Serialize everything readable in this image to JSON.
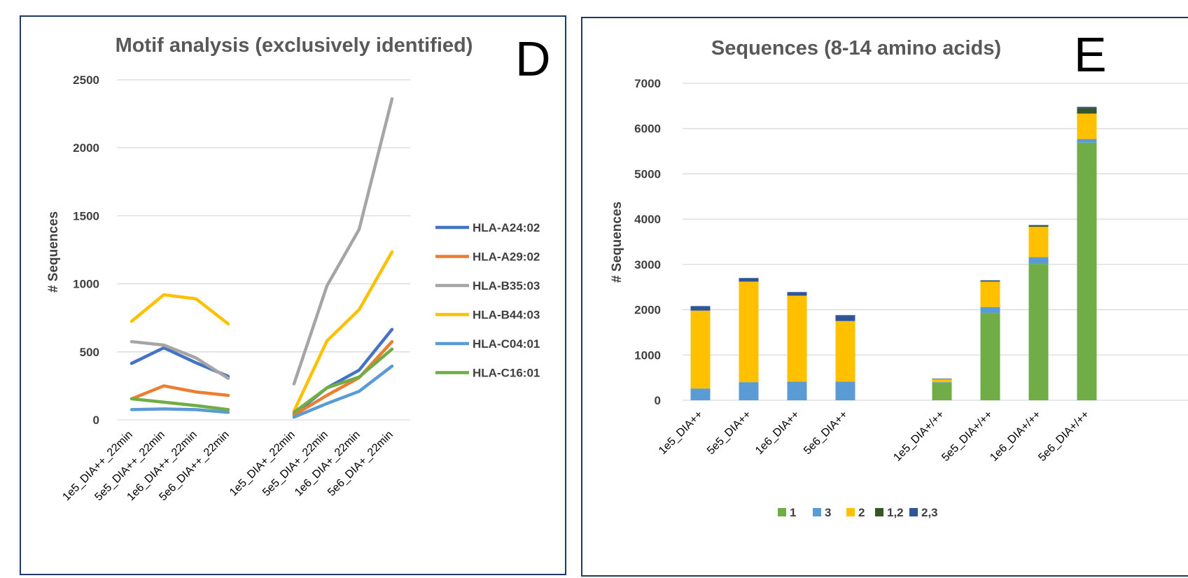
{
  "chart_data": [
    {
      "type": "line",
      "panel_letter": "D",
      "title": "Motif analysis (exclusively identified)",
      "ylabel": "# Sequences",
      "ylim": [
        0,
        2500
      ],
      "yticks": [
        "0",
        "500",
        "1000",
        "1500",
        "2000",
        "2500"
      ],
      "groups": [
        [
          "1e5_DIA++_22min",
          "5e5_DIA++_22min",
          "1e6_DIA++_22min",
          "5e6_DIA++_22min"
        ],
        [
          "1e5_DIA+_22min",
          "5e5_DIA+_22min",
          "1e6_DIA+_22min",
          "5e6_DIA+_22min"
        ]
      ],
      "legend_position": "right",
      "series": [
        {
          "name": "HLA-A24:02",
          "color": "#4472c4",
          "values": [
            [
              415,
              530,
              420,
              320
            ],
            [
              40,
              235,
              365,
              665
            ]
          ]
        },
        {
          "name": "HLA-A29:02",
          "color": "#ed7d31",
          "values": [
            [
              155,
              250,
              205,
              180
            ],
            [
              35,
              180,
              310,
              575
            ]
          ]
        },
        {
          "name": "HLA-B35:03",
          "color": "#a5a5a5",
          "values": [
            [
              575,
              550,
              455,
              305
            ],
            [
              265,
              985,
              1400,
              2360
            ]
          ]
        },
        {
          "name": "HLA-B44:03",
          "color": "#ffc000",
          "values": [
            [
              725,
              920,
              890,
              705
            ],
            [
              65,
              580,
              810,
              1235
            ]
          ]
        },
        {
          "name": "HLA-C04:01",
          "color": "#5b9bd5",
          "values": [
            [
              75,
              80,
              75,
              55
            ],
            [
              20,
              120,
              210,
              395
            ]
          ]
        },
        {
          "name": "HLA-C16:01",
          "color": "#70ad47",
          "values": [
            [
              155,
              130,
              105,
              75
            ],
            [
              55,
              235,
              315,
              520
            ]
          ]
        }
      ]
    },
    {
      "type": "bar",
      "stacked": true,
      "panel_letter": "E",
      "title": "Sequences (8-14 amino acids)",
      "ylabel": "# Sequences",
      "ylim": [
        0,
        7000
      ],
      "yticks": [
        "0",
        "1000",
        "2000",
        "3000",
        "4000",
        "5000",
        "6000",
        "7000"
      ],
      "categories": [
        "1e5_DIA++",
        "5e5_DIA++",
        "1e6_DIA++",
        "5e6_DIA++",
        "",
        "1e5_DIA+/++",
        "5e5_DIA+/++",
        "1e6_DIA+/++",
        "5e6_DIA+/++"
      ],
      "legend_position": "bottom",
      "series": [
        {
          "name": "1",
          "color": "#70ad47",
          "values": [
            0,
            0,
            0,
            0,
            null,
            390,
            1930,
            3010,
            5690
          ]
        },
        {
          "name": "3",
          "color": "#5b9bd5",
          "values": [
            260,
            400,
            410,
            410,
            null,
            10,
            130,
            150,
            80
          ]
        },
        {
          "name": "2",
          "color": "#ffc000",
          "values": [
            1720,
            2220,
            1900,
            1340,
            null,
            70,
            560,
            670,
            560
          ]
        },
        {
          "name": "1,2",
          "color": "#375623",
          "values": [
            0,
            0,
            0,
            0,
            null,
            5,
            20,
            30,
            120
          ]
        },
        {
          "name": "2,3",
          "color": "#2f5597",
          "values": [
            100,
            80,
            80,
            130,
            null,
            0,
            10,
            10,
            30
          ]
        }
      ]
    }
  ]
}
